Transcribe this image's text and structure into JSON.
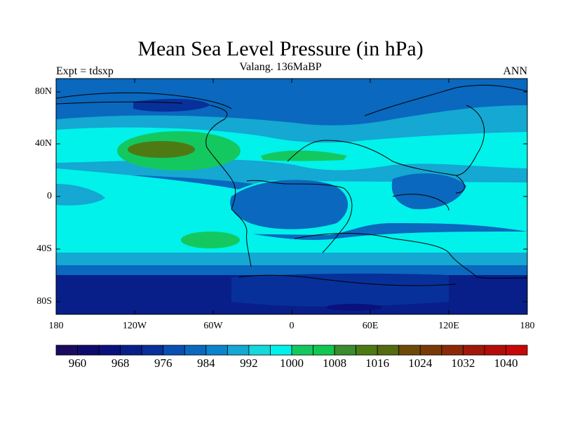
{
  "title": "Mean Sea Level Pressure (in hPa)",
  "subtitle": "Valang. 136MaBP",
  "left_label": "Expt = tdsxp",
  "right_label": "ANN",
  "map": {
    "lat_ticks": [
      "80N",
      "40N",
      "0",
      "40S",
      "80S"
    ],
    "lon_ticks": [
      "180",
      "120W",
      "60W",
      "0",
      "60E",
      "120E",
      "180"
    ],
    "projection": "cylindrical equidistant",
    "lon_range": [
      -180,
      180
    ],
    "lat_range": [
      -90,
      90
    ]
  },
  "colorbar": {
    "labels": [
      "960",
      "968",
      "976",
      "984",
      "992",
      "1000",
      "1008",
      "1016",
      "1024",
      "1032",
      "1040"
    ],
    "colors": [
      "#1b0a5e",
      "#0e0a6e",
      "#0a107c",
      "#081f8a",
      "#08309a",
      "#0a4fb4",
      "#0a68be",
      "#0a84cc",
      "#14a8d2",
      "#15d8dc",
      "#00f2ea",
      "#14c860",
      "#10c850",
      "#3a8c2e",
      "#4e7a14",
      "#556b10",
      "#6e4a08",
      "#7a3a08",
      "#8c2a08",
      "#a01808",
      "#b40c08",
      "#c80808"
    ],
    "units": "hPa"
  },
  "colors": {
    "fill_low": "#081f8a",
    "fill_mid": "#0a68be",
    "fill_light": "#14a8d2",
    "fill_cyan": "#00f2ea",
    "fill_green": "#14c860",
    "fill_olive": "#4e7a14",
    "coast": "#000000"
  }
}
